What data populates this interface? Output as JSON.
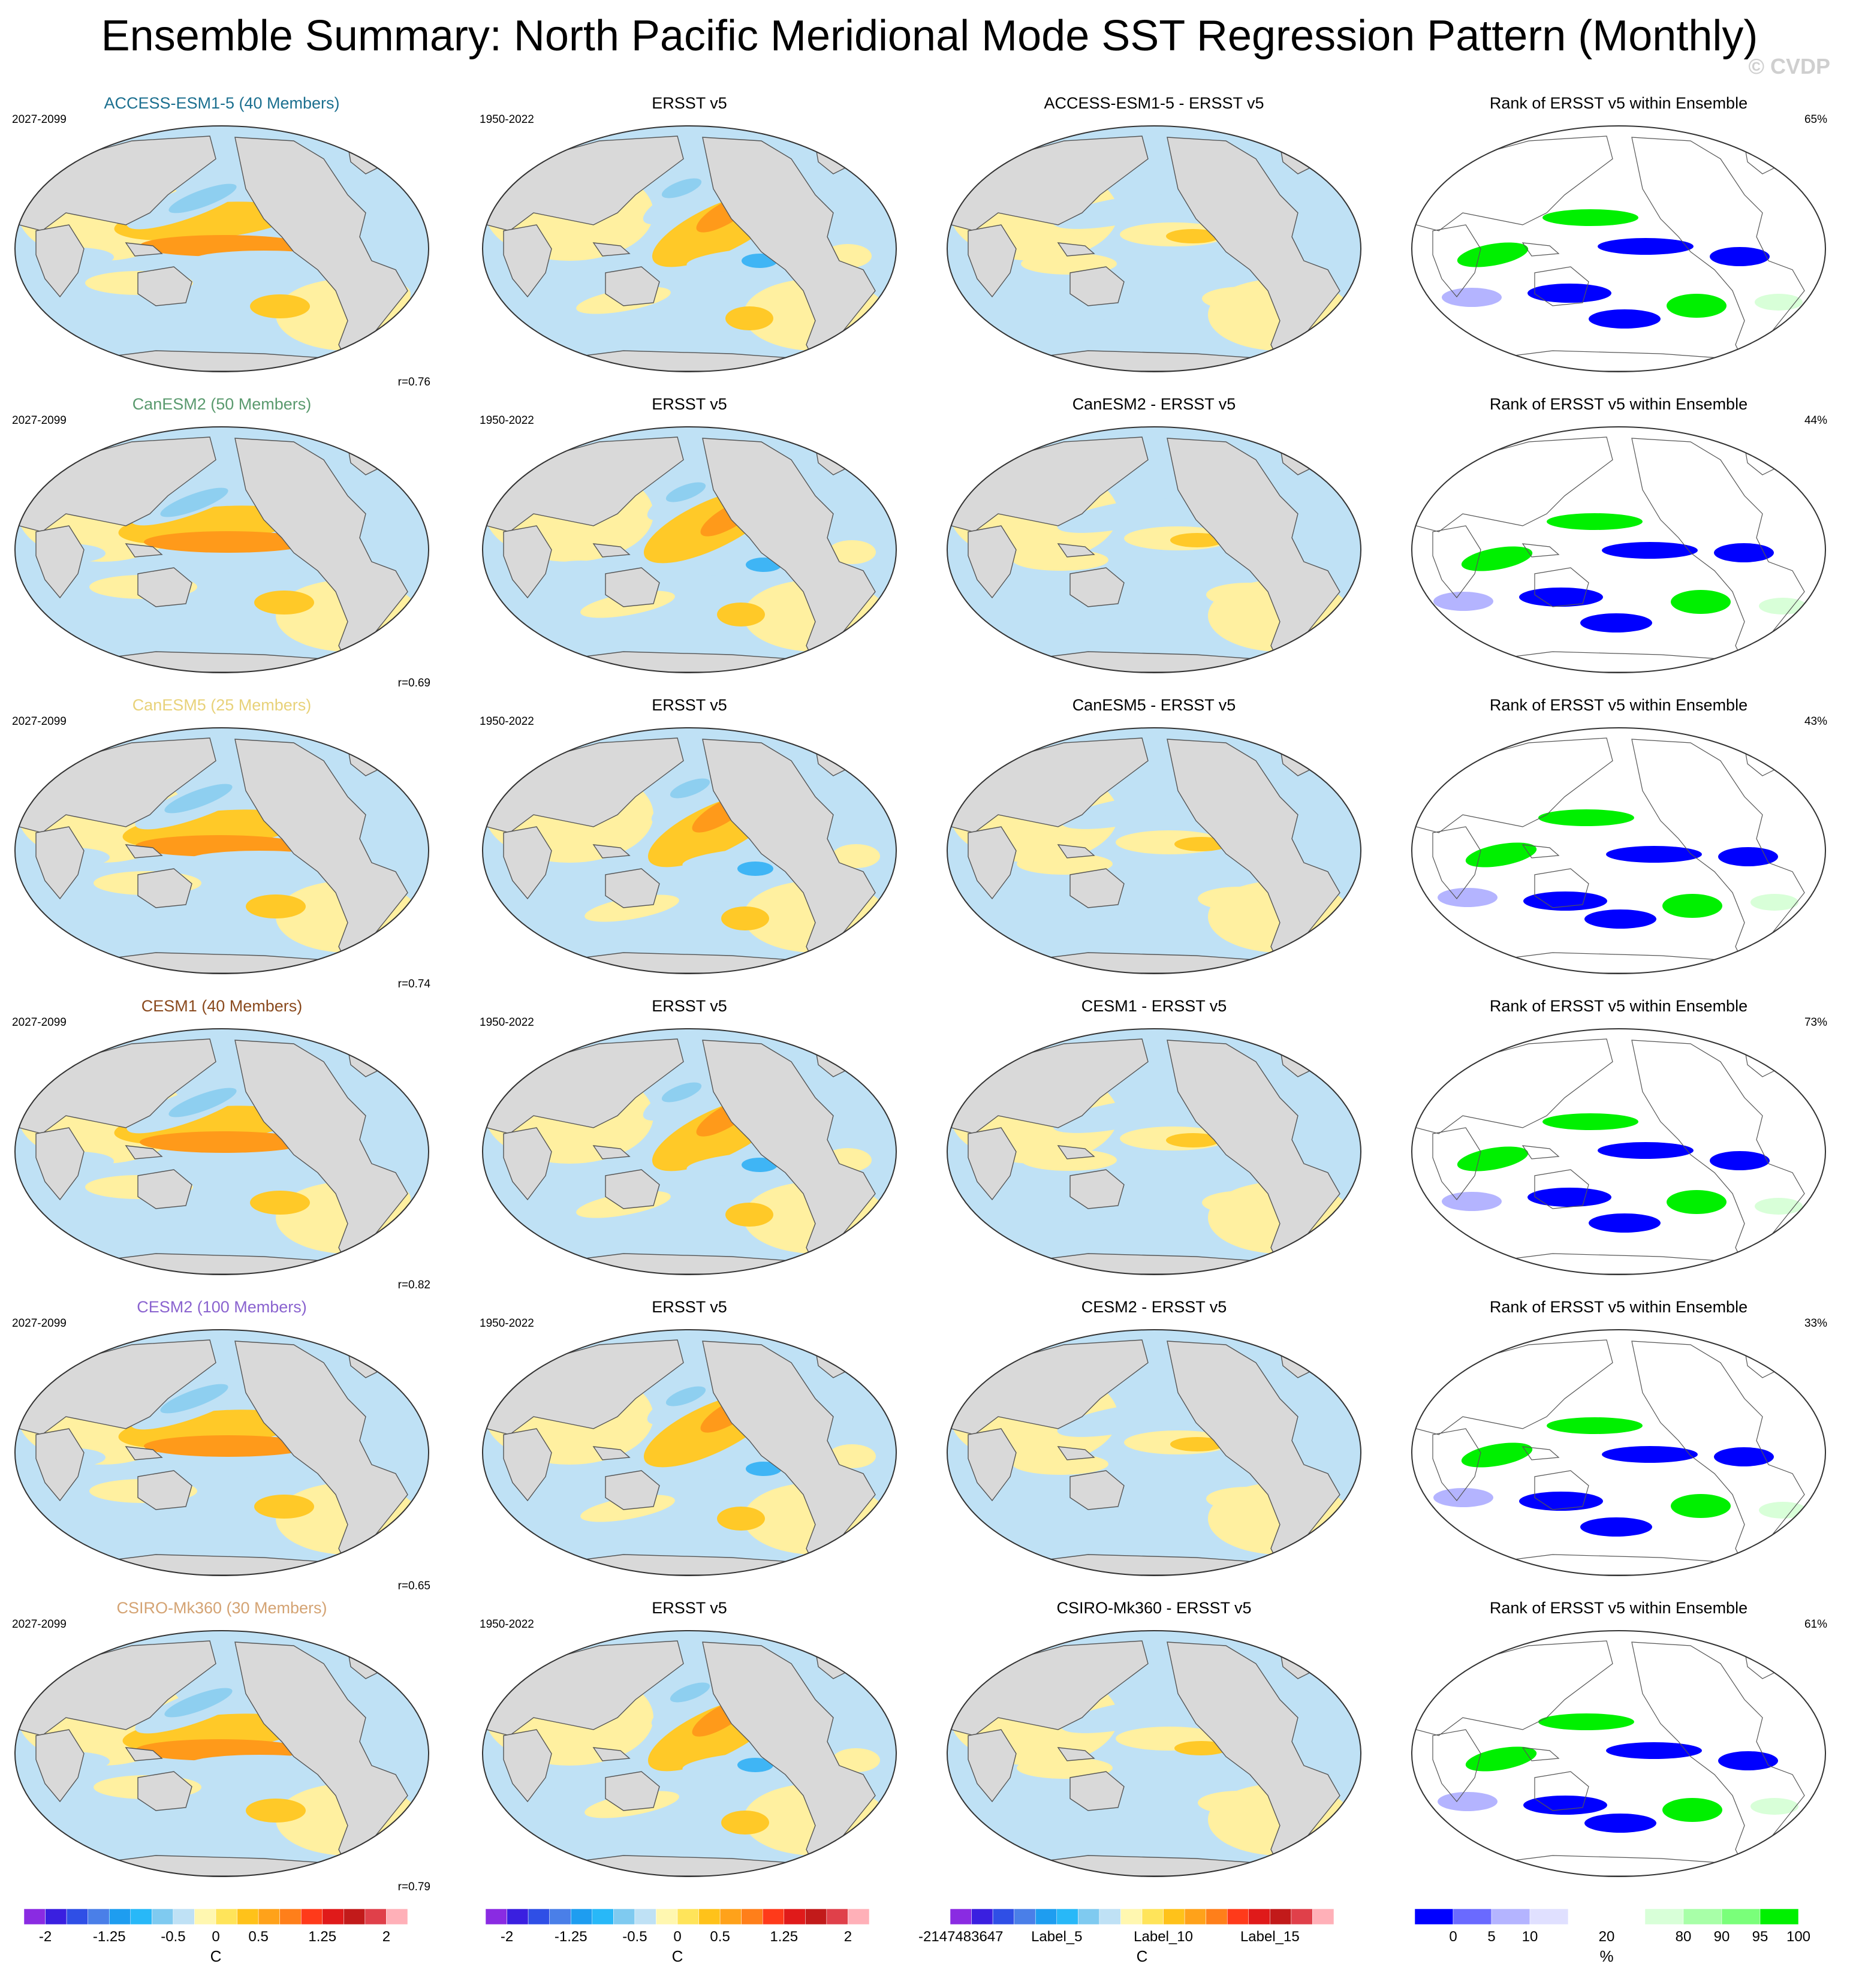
{
  "title": "Ensemble Summary: North Pacific Meridional Mode SST Regression Pattern (Monthly)",
  "watermark": "© CVDP",
  "obs_name": "ERSST v5",
  "rank_title": "Rank of ERSST v5 within Ensemble",
  "model_period": "2027-2099",
  "obs_period": "1950-2022",
  "rows": [
    {
      "model": "ACCESS-ESM1-5 (40 Members)",
      "model_color": "#1b6f8f",
      "diff_title": "ACCESS-ESM1-5 - ERSST v5",
      "r": "r=0.76",
      "rank_pct": "65%"
    },
    {
      "model": "CanESM2 (50 Members)",
      "model_color": "#5a9a6e",
      "diff_title": "CanESM2 - ERSST v5",
      "r": "r=0.69",
      "rank_pct": "44%"
    },
    {
      "model": "CanESM5 (25 Members)",
      "model_color": "#e8d27a",
      "diff_title": "CanESM5 - ERSST v5",
      "r": "r=0.74",
      "rank_pct": "43%"
    },
    {
      "model": "CESM1 (40 Members)",
      "model_color": "#8a4a1e",
      "diff_title": "CESM1 - ERSST v5",
      "r": "r=0.82",
      "rank_pct": "73%"
    },
    {
      "model": "CESM2 (100 Members)",
      "model_color": "#8a63cf",
      "diff_title": "CESM2 - ERSST v5",
      "r": "r=0.65",
      "rank_pct": "33%"
    },
    {
      "model": "CSIRO-Mk360 (30 Members)",
      "model_color": "#d4a373",
      "diff_title": "CSIRO-Mk360 - ERSST v5",
      "r": "r=0.79",
      "rank_pct": "61%"
    }
  ],
  "colorbars": {
    "sst": {
      "colors": [
        "#8a2be2",
        "#3a1fe0",
        "#2f4fe6",
        "#4a7fe8",
        "#1e9df0",
        "#28b8f8",
        "#7fcaf0",
        "#bfe1f5",
        "#fff7b0",
        "#ffe45a",
        "#ffc21a",
        "#ffa21a",
        "#ff7f1a",
        "#ff3a1a",
        "#e01a1a",
        "#c21a1a",
        "#e0404a",
        "#ffb0b8"
      ],
      "labels": [
        "-2",
        "-1.25",
        "-0.5",
        "0",
        "0.5",
        "1.25",
        "2"
      ],
      "label_positions": [
        1,
        4,
        7,
        9,
        11,
        14,
        17
      ],
      "unit": "C"
    },
    "diff": {
      "colors": [
        "#8a2be2",
        "#3a1fe0",
        "#2f4fe6",
        "#4a7fe8",
        "#1e9df0",
        "#28b8f8",
        "#7fcaf0",
        "#bfe1f5",
        "#fff7b0",
        "#ffe45a",
        "#ffc21a",
        "#ffa21a",
        "#ff7f1a",
        "#ff3a1a",
        "#e01a1a",
        "#c21a1a",
        "#e0404a",
        "#ffb0b8"
      ],
      "labels": [
        "-2147483647",
        "Label_5",
        "Label_10",
        "Label_15"
      ],
      "label_positions": [
        0.5,
        5,
        10,
        15
      ],
      "unit": "C"
    },
    "rank": {
      "colors": [
        "#0000ff",
        "#6a6aff",
        "#b4b4ff",
        "#e0e0ff",
        "#ffffff",
        "#ffffff",
        "#d8ffd8",
        "#a8ffa8",
        "#7aff7a",
        "#00f000"
      ],
      "labels": [
        "0",
        "5",
        "10",
        "20",
        "80",
        "90",
        "95",
        "100"
      ],
      "label_positions": [
        1,
        2,
        3,
        5,
        7,
        8,
        9,
        10
      ],
      "unit": "%"
    }
  }
}
